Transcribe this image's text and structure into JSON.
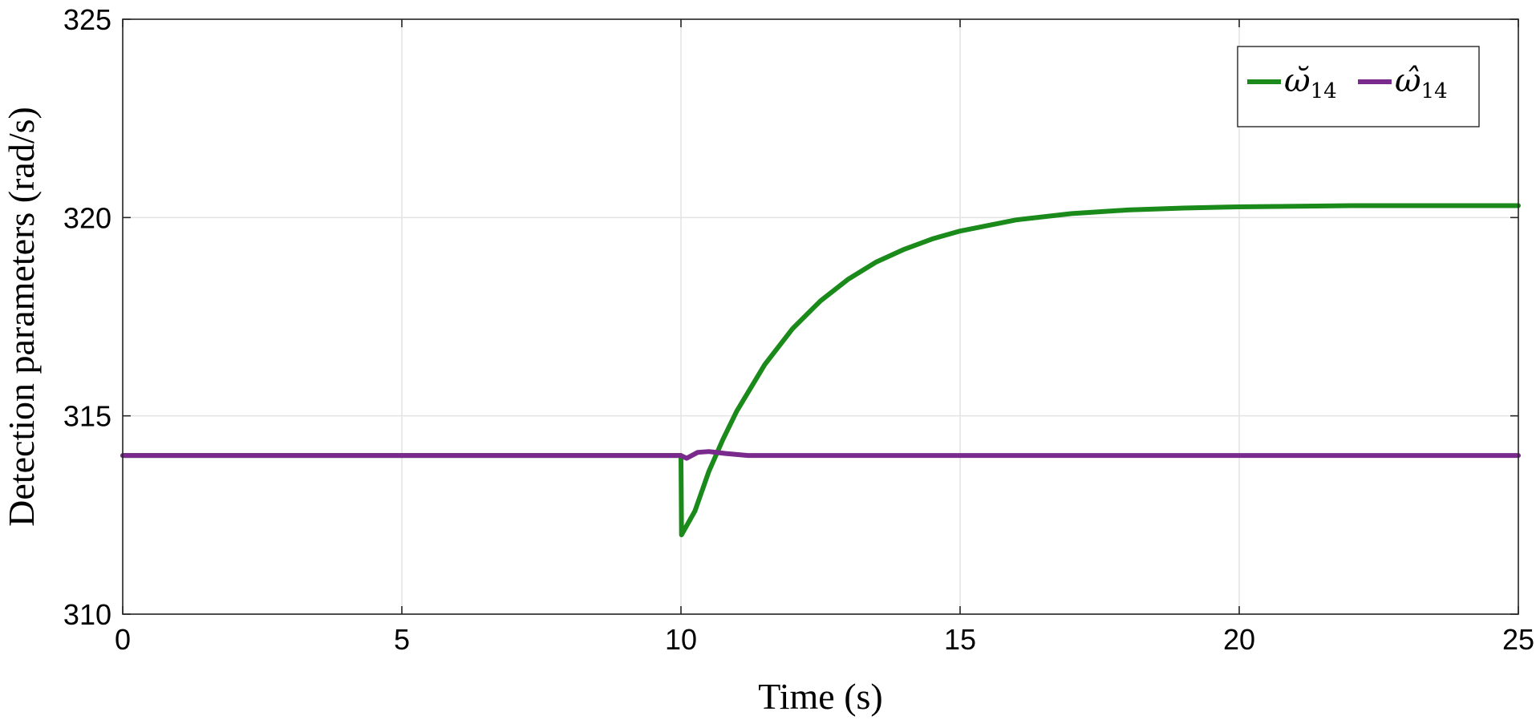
{
  "chart_data": {
    "type": "line",
    "title": "",
    "xlabel": "Time (s)",
    "ylabel": "Detection parameters (rad/s)",
    "xlim": [
      0,
      25
    ],
    "ylim": [
      310,
      325
    ],
    "xticks": [
      0,
      5,
      10,
      15,
      20,
      25
    ],
    "yticks": [
      310,
      315,
      320,
      325
    ],
    "grid": true,
    "legend": {
      "position": "top-right",
      "orientation": "horizontal"
    },
    "series": [
      {
        "name": "ω̆14",
        "name_base": "ω̆",
        "name_sub": "14",
        "color": "#1a8a1a",
        "points": [
          [
            0,
            314.0
          ],
          [
            10.0,
            314.0
          ],
          [
            10.01,
            312.0
          ],
          [
            10.25,
            312.6
          ],
          [
            10.5,
            313.6
          ],
          [
            10.75,
            314.4
          ],
          [
            11.0,
            315.12
          ],
          [
            11.5,
            316.29
          ],
          [
            12.0,
            317.2
          ],
          [
            12.5,
            317.9
          ],
          [
            13.0,
            318.45
          ],
          [
            13.5,
            318.88
          ],
          [
            14.0,
            319.2
          ],
          [
            14.5,
            319.46
          ],
          [
            15.0,
            319.66
          ],
          [
            16.0,
            319.94
          ],
          [
            17.0,
            320.1
          ],
          [
            18.0,
            320.19
          ],
          [
            19.0,
            320.24
          ],
          [
            20.0,
            320.27
          ],
          [
            22.0,
            320.3
          ],
          [
            25.0,
            320.3
          ]
        ]
      },
      {
        "name": "ω̂14",
        "name_base": "ω̂",
        "name_sub": "14",
        "color": "#7a2a8c",
        "points": [
          [
            0,
            314.0
          ],
          [
            10.0,
            314.0
          ],
          [
            10.1,
            313.93
          ],
          [
            10.3,
            314.08
          ],
          [
            10.5,
            314.1
          ],
          [
            10.8,
            314.05
          ],
          [
            11.2,
            314.0
          ],
          [
            25.0,
            314.0
          ]
        ]
      }
    ]
  }
}
